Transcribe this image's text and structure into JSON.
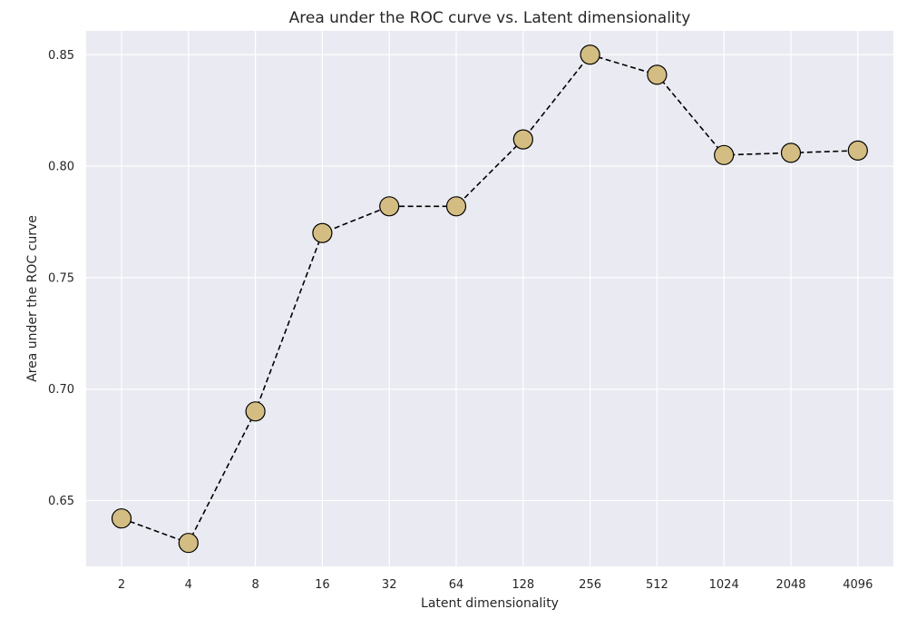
{
  "chart_data": {
    "type": "line",
    "title": "Area under the ROC curve vs. Latent dimensionality",
    "xlabel": "Latent dimensionality",
    "ylabel": "Area under the ROC curve",
    "categories": [
      "2",
      "4",
      "8",
      "16",
      "32",
      "64",
      "128",
      "256",
      "512",
      "1024",
      "2048",
      "4096"
    ],
    "series": [
      {
        "values": [
          0.642,
          0.631,
          0.69,
          0.77,
          0.782,
          0.782,
          0.812,
          0.85,
          0.841,
          0.805,
          0.806,
          0.807
        ]
      }
    ],
    "yticks": [
      "0.65",
      "0.70",
      "0.75",
      "0.80",
      "0.85"
    ],
    "ylim": [
      0.6205,
      0.8607
    ],
    "grid": true,
    "line_style": "dashed",
    "line_color": "#000000",
    "marker_color": "#d4bd82",
    "marker_edge_color": "#000000",
    "background_color": "#eaeaf2"
  }
}
